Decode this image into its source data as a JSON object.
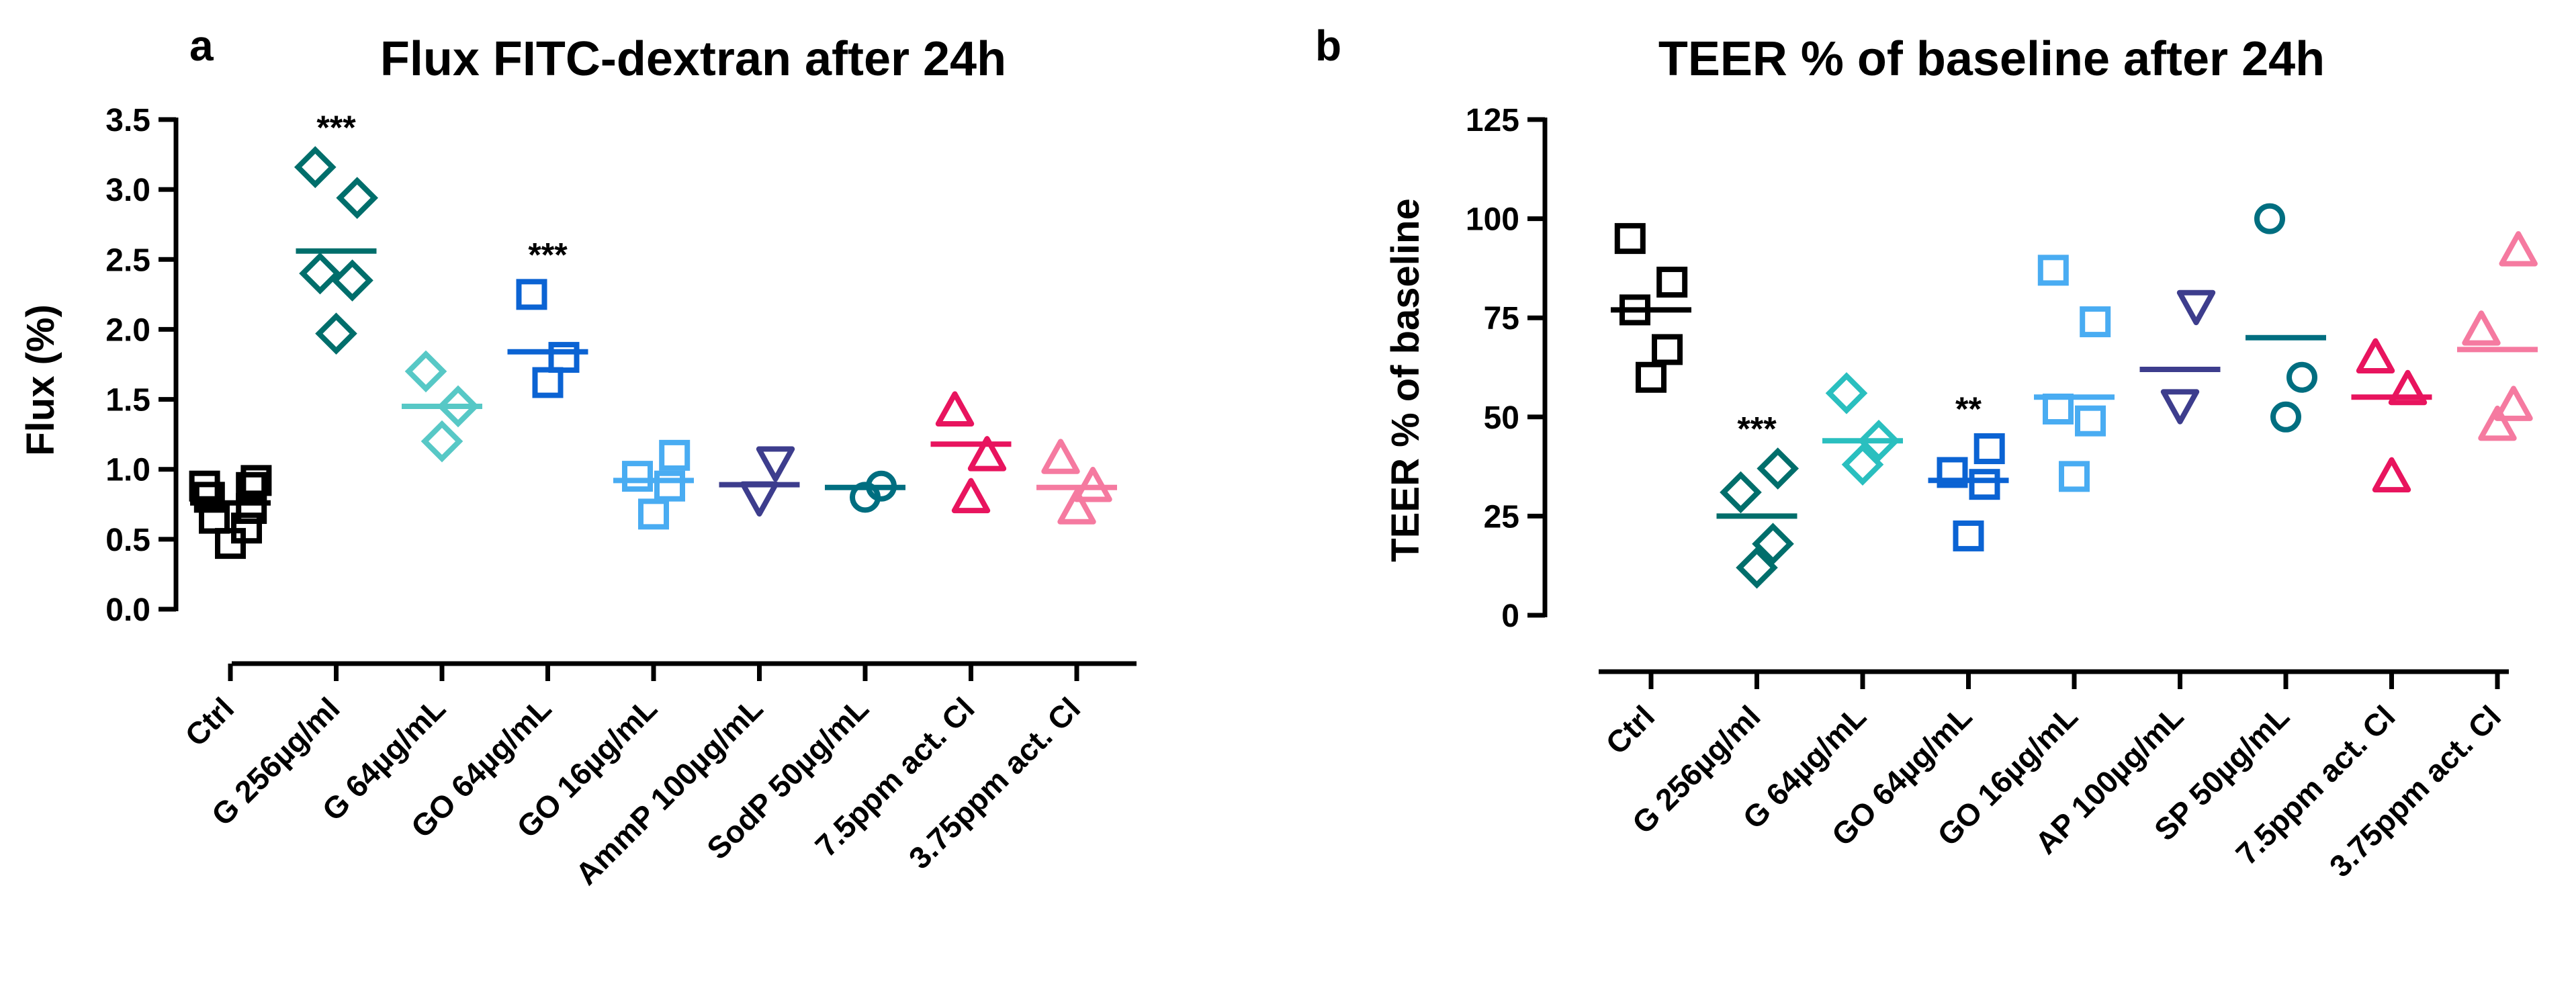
{
  "chart_data": [
    {
      "panel": "a",
      "type": "scatter",
      "title": "Flux FITC-dextran after 24h",
      "ylabel": "Flux (%)",
      "xlabel": "",
      "ylim": [
        0,
        3.5
      ],
      "yticks": [
        0.0,
        0.5,
        1.0,
        1.5,
        2.0,
        2.5,
        3.0,
        3.5
      ],
      "ytick_labels": [
        "0.0",
        "0.5",
        "1.0",
        "1.5",
        "2.0",
        "2.5",
        "3.0",
        "3.5"
      ],
      "categories": [
        "Ctrl",
        "G 256µg/ml",
        "G 64µg/mL",
        "GO 64µg/mL",
        "GO 16µg/mL",
        "AmmP 100µg/mL",
        "SodP 50µg/mL",
        "7.5ppm act. Cl",
        "3.75ppm act. Cl"
      ],
      "series": [
        {
          "name": "Ctrl",
          "marker": "square",
          "color": "#000000",
          "mean": 0.76,
          "values": [
            0.47,
            0.58,
            0.65,
            0.72,
            0.8,
            0.87,
            0.88,
            0.92
          ],
          "significance": ""
        },
        {
          "name": "G 256µg/ml",
          "marker": "diamond",
          "color": "#006e6b",
          "mean": 2.56,
          "values": [
            1.97,
            2.35,
            2.4,
            2.94,
            3.16
          ],
          "significance": "***"
        },
        {
          "name": "G 64µg/mL",
          "marker": "diamond",
          "color": "#57c8c6",
          "mean": 1.45,
          "values": [
            1.2,
            1.45,
            1.7
          ],
          "significance": ""
        },
        {
          "name": "GO 64µg/mL",
          "marker": "square",
          "color": "#0b63d3",
          "mean": 1.84,
          "values": [
            1.62,
            1.8,
            2.25
          ],
          "significance": "***"
        },
        {
          "name": "GO 16µg/mL",
          "marker": "square",
          "color": "#49acf2",
          "mean": 0.92,
          "values": [
            0.68,
            0.88,
            0.95,
            1.1
          ],
          "significance": ""
        },
        {
          "name": "AmmP 100µg/mL",
          "marker": "triangle-down",
          "color": "#3d3d8d",
          "mean": 0.89,
          "values": [
            0.8,
            1.05
          ],
          "significance": ""
        },
        {
          "name": "SodP 50µg/mL",
          "marker": "circle",
          "color": "#006e80",
          "mean": 0.87,
          "values": [
            0.8,
            0.88
          ],
          "significance": ""
        },
        {
          "name": "7.5ppm act. Cl",
          "marker": "triangle-up",
          "color": "#e8145e",
          "mean": 1.18,
          "values": [
            0.8,
            1.1,
            1.42
          ],
          "significance": ""
        },
        {
          "name": "3.75ppm act. Cl",
          "marker": "triangle-up",
          "color": "#f57aa0",
          "mean": 0.87,
          "values": [
            0.72,
            0.88,
            1.08
          ],
          "significance": ""
        }
      ]
    },
    {
      "panel": "b",
      "type": "scatter",
      "title": "TEER % of baseline after 24h",
      "ylabel": "TEER % of baseline",
      "xlabel": "",
      "ylim": [
        0,
        125
      ],
      "yticks": [
        0,
        25,
        50,
        75,
        100,
        125
      ],
      "ytick_labels": [
        "0",
        "25",
        "50",
        "75",
        "100",
        "125"
      ],
      "categories": [
        "Ctrl",
        "G 256µg/ml",
        "G 64µg/mL",
        "GO 64µg/mL",
        "GO 16µg/mL",
        "AP 100µg/mL",
        "SP 50µg/mL",
        "7.5ppm act. Cl",
        "3.75ppm act. Cl"
      ],
      "series": [
        {
          "name": "Ctrl",
          "marker": "square",
          "color": "#000000",
          "mean": 77,
          "values": [
            60,
            67,
            77,
            84,
            95
          ],
          "significance": ""
        },
        {
          "name": "G 256µg/ml",
          "marker": "diamond",
          "color": "#006e6b",
          "mean": 25,
          "values": [
            12,
            18,
            31,
            37
          ],
          "significance": "***"
        },
        {
          "name": "G 64µg/mL",
          "marker": "diamond",
          "color": "#2abfbf",
          "mean": 44,
          "values": [
            38,
            44,
            56
          ],
          "significance": ""
        },
        {
          "name": "GO 64µg/mL",
          "marker": "square",
          "color": "#0b63d3",
          "mean": 34,
          "values": [
            20,
            33,
            36,
            42
          ],
          "significance": "**"
        },
        {
          "name": "GO 16µg/mL",
          "marker": "square",
          "color": "#49acf2",
          "mean": 55,
          "values": [
            35,
            49,
            52,
            74,
            87
          ],
          "significance": ""
        },
        {
          "name": "AP 100µg/mL",
          "marker": "triangle-down",
          "color": "#3d3d8d",
          "mean": 62,
          "values": [
            53,
            78
          ],
          "significance": ""
        },
        {
          "name": "SP 50µg/mL",
          "marker": "circle",
          "color": "#006e80",
          "mean": 70,
          "values": [
            50,
            60,
            100
          ],
          "significance": ""
        },
        {
          "name": "7.5ppm act. Cl",
          "marker": "triangle-up",
          "color": "#e8145e",
          "mean": 55,
          "values": [
            35,
            57,
            65
          ],
          "significance": ""
        },
        {
          "name": "3.75ppm act. Cl",
          "marker": "triangle-up",
          "color": "#f57aa0",
          "mean": 67,
          "values": [
            48,
            53,
            72,
            92
          ],
          "significance": ""
        }
      ]
    }
  ]
}
